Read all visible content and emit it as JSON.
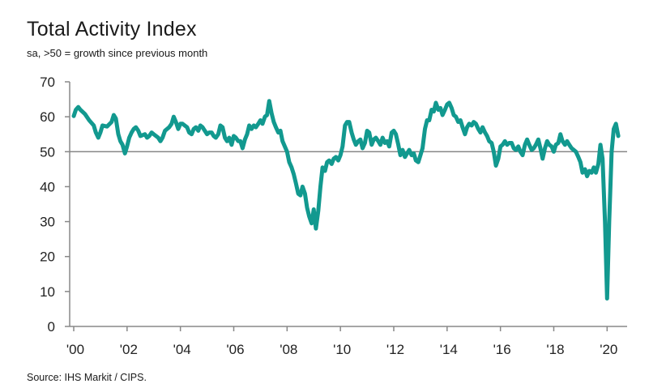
{
  "title": "Total Activity Index",
  "subtitle": "sa, >50 = growth since previous month",
  "source": "Source: IHS Markit / CIPS.",
  "colors": {
    "line": "#12998f",
    "axis": "#888888",
    "reference": "#888888",
    "text": "#222222"
  },
  "chart_data": {
    "type": "line",
    "title": "Total Activity Index",
    "subtitle": "sa, >50 = growth since previous month",
    "xlabel": "",
    "ylabel": "",
    "ylim": [
      0,
      70
    ],
    "xlim": [
      2000,
      2020.75
    ],
    "yticks": [
      0,
      10,
      20,
      30,
      40,
      50,
      60,
      70
    ],
    "xticks": [
      {
        "value": 2000,
        "label": "'00"
      },
      {
        "value": 2002,
        "label": "'02"
      },
      {
        "value": 2004,
        "label": "'04"
      },
      {
        "value": 2006,
        "label": "'06"
      },
      {
        "value": 2008,
        "label": "'08"
      },
      {
        "value": 2010,
        "label": "'10"
      },
      {
        "value": 2012,
        "label": "'12"
      },
      {
        "value": 2014,
        "label": "'14"
      },
      {
        "value": 2016,
        "label": "'16"
      },
      {
        "value": 2018,
        "label": "'18"
      },
      {
        "value": 2020,
        "label": "'20"
      }
    ],
    "reference_line": 50,
    "grid": false,
    "series": [
      {
        "name": "Total Activity Index",
        "points": [
          [
            2000.0,
            60.2
          ],
          [
            2000.08,
            62.0
          ],
          [
            2000.17,
            62.8
          ],
          [
            2000.25,
            62.0
          ],
          [
            2000.42,
            60.8
          ],
          [
            2000.58,
            59.0
          ],
          [
            2000.75,
            57.5
          ],
          [
            2000.83,
            55.5
          ],
          [
            2000.92,
            54.0
          ],
          [
            2001.0,
            55.5
          ],
          [
            2001.08,
            57.5
          ],
          [
            2001.25,
            57.2
          ],
          [
            2001.42,
            58.5
          ],
          [
            2001.5,
            60.5
          ],
          [
            2001.58,
            59.5
          ],
          [
            2001.67,
            55.0
          ],
          [
            2001.75,
            53.0
          ],
          [
            2001.83,
            52.0
          ],
          [
            2001.92,
            49.5
          ],
          [
            2002.0,
            51.5
          ],
          [
            2002.08,
            54.0
          ],
          [
            2002.17,
            55.5
          ],
          [
            2002.25,
            56.5
          ],
          [
            2002.33,
            57.0
          ],
          [
            2002.42,
            56.0
          ],
          [
            2002.5,
            54.5
          ],
          [
            2002.67,
            55.0
          ],
          [
            2002.75,
            54.0
          ],
          [
            2002.83,
            54.5
          ],
          [
            2002.92,
            55.5
          ],
          [
            2003.0,
            55.0
          ],
          [
            2003.17,
            54.0
          ],
          [
            2003.25,
            53.0
          ],
          [
            2003.33,
            54.0
          ],
          [
            2003.42,
            56.0
          ],
          [
            2003.58,
            57.0
          ],
          [
            2003.67,
            58.0
          ],
          [
            2003.75,
            60.0
          ],
          [
            2003.83,
            58.5
          ],
          [
            2003.92,
            56.5
          ],
          [
            2004.0,
            58.0
          ],
          [
            2004.08,
            58.0
          ],
          [
            2004.25,
            57.0
          ],
          [
            2004.33,
            55.5
          ],
          [
            2004.42,
            55.0
          ],
          [
            2004.5,
            56.5
          ],
          [
            2004.58,
            57.0
          ],
          [
            2004.67,
            56.0
          ],
          [
            2004.75,
            57.5
          ],
          [
            2004.83,
            57.0
          ],
          [
            2005.0,
            55.0
          ],
          [
            2005.08,
            55.5
          ],
          [
            2005.17,
            55.5
          ],
          [
            2005.25,
            54.5
          ],
          [
            2005.33,
            54.0
          ],
          [
            2005.42,
            55.0
          ],
          [
            2005.5,
            57.5
          ],
          [
            2005.58,
            57.0
          ],
          [
            2005.67,
            54.0
          ],
          [
            2005.75,
            53.0
          ],
          [
            2005.83,
            54.0
          ],
          [
            2005.92,
            52.0
          ],
          [
            2006.0,
            54.5
          ],
          [
            2006.08,
            54.0
          ],
          [
            2006.17,
            53.0
          ],
          [
            2006.25,
            53.0
          ],
          [
            2006.33,
            51.0
          ],
          [
            2006.42,
            53.5
          ],
          [
            2006.5,
            55.0
          ],
          [
            2006.58,
            57.5
          ],
          [
            2006.67,
            56.5
          ],
          [
            2006.75,
            57.5
          ],
          [
            2006.83,
            57.0
          ],
          [
            2006.92,
            58.0
          ],
          [
            2007.0,
            59.0
          ],
          [
            2007.08,
            58.0
          ],
          [
            2007.17,
            60.0
          ],
          [
            2007.25,
            60.5
          ],
          [
            2007.33,
            64.5
          ],
          [
            2007.42,
            61.0
          ],
          [
            2007.5,
            58.5
          ],
          [
            2007.58,
            57.0
          ],
          [
            2007.67,
            55.5
          ],
          [
            2007.75,
            56.0
          ],
          [
            2007.83,
            53.0
          ],
          [
            2008.0,
            50.0
          ],
          [
            2008.08,
            47.0
          ],
          [
            2008.17,
            45.5
          ],
          [
            2008.25,
            43.5
          ],
          [
            2008.33,
            41.0
          ],
          [
            2008.42,
            38.0
          ],
          [
            2008.5,
            37.5
          ],
          [
            2008.58,
            40.0
          ],
          [
            2008.67,
            38.0
          ],
          [
            2008.75,
            34.0
          ],
          [
            2008.83,
            31.5
          ],
          [
            2008.92,
            29.5
          ],
          [
            2009.0,
            33.5
          ],
          [
            2009.08,
            28.0
          ],
          [
            2009.17,
            33.0
          ],
          [
            2009.25,
            40.0
          ],
          [
            2009.33,
            45.5
          ],
          [
            2009.42,
            44.5
          ],
          [
            2009.5,
            47.0
          ],
          [
            2009.58,
            47.5
          ],
          [
            2009.67,
            46.5
          ],
          [
            2009.75,
            48.0
          ],
          [
            2009.83,
            48.5
          ],
          [
            2009.92,
            47.5
          ],
          [
            2010.0,
            49.0
          ],
          [
            2010.08,
            51.5
          ],
          [
            2010.17,
            57.5
          ],
          [
            2010.25,
            58.5
          ],
          [
            2010.33,
            58.5
          ],
          [
            2010.42,
            55.5
          ],
          [
            2010.5,
            53.5
          ],
          [
            2010.58,
            52.0
          ],
          [
            2010.67,
            53.0
          ],
          [
            2010.75,
            53.5
          ],
          [
            2010.83,
            51.0
          ],
          [
            2010.92,
            52.5
          ],
          [
            2011.0,
            56.0
          ],
          [
            2011.08,
            55.5
          ],
          [
            2011.17,
            52.0
          ],
          [
            2011.25,
            53.5
          ],
          [
            2011.33,
            54.0
          ],
          [
            2011.42,
            53.0
          ],
          [
            2011.5,
            52.0
          ],
          [
            2011.58,
            54.0
          ],
          [
            2011.67,
            52.5
          ],
          [
            2011.75,
            53.0
          ],
          [
            2011.83,
            51.5
          ],
          [
            2011.92,
            55.5
          ],
          [
            2012.0,
            56.0
          ],
          [
            2012.08,
            55.0
          ],
          [
            2012.17,
            52.0
          ],
          [
            2012.25,
            49.0
          ],
          [
            2012.33,
            50.5
          ],
          [
            2012.42,
            48.5
          ],
          [
            2012.5,
            49.5
          ],
          [
            2012.58,
            50.5
          ],
          [
            2012.67,
            49.0
          ],
          [
            2012.75,
            49.5
          ],
          [
            2012.83,
            47.5
          ],
          [
            2012.92,
            47.0
          ],
          [
            2013.0,
            49.0
          ],
          [
            2013.08,
            51.0
          ],
          [
            2013.17,
            56.5
          ],
          [
            2013.25,
            59.0
          ],
          [
            2013.33,
            59.0
          ],
          [
            2013.42,
            62.0
          ],
          [
            2013.5,
            61.5
          ],
          [
            2013.58,
            64.0
          ],
          [
            2013.67,
            62.0
          ],
          [
            2013.75,
            62.5
          ],
          [
            2013.83,
            60.5
          ],
          [
            2013.92,
            62.0
          ],
          [
            2014.0,
            63.5
          ],
          [
            2014.08,
            64.0
          ],
          [
            2014.17,
            62.5
          ],
          [
            2014.25,
            60.5
          ],
          [
            2014.33,
            60.0
          ],
          [
            2014.42,
            58.5
          ],
          [
            2014.5,
            59.0
          ],
          [
            2014.58,
            57.0
          ],
          [
            2014.67,
            55.0
          ],
          [
            2014.75,
            57.0
          ],
          [
            2014.83,
            58.0
          ],
          [
            2014.92,
            57.5
          ],
          [
            2015.0,
            58.5
          ],
          [
            2015.08,
            58.0
          ],
          [
            2015.17,
            56.5
          ],
          [
            2015.25,
            55.5
          ],
          [
            2015.33,
            57.0
          ],
          [
            2015.42,
            55.5
          ],
          [
            2015.5,
            54.5
          ],
          [
            2015.58,
            53.0
          ],
          [
            2015.67,
            52.5
          ],
          [
            2015.75,
            50.0
          ],
          [
            2015.83,
            46.0
          ],
          [
            2015.92,
            48.0
          ],
          [
            2016.0,
            51.5
          ],
          [
            2016.08,
            52.0
          ],
          [
            2016.17,
            53.0
          ],
          [
            2016.25,
            52.0
          ],
          [
            2016.33,
            52.5
          ],
          [
            2016.42,
            52.5
          ],
          [
            2016.5,
            51.0
          ],
          [
            2016.58,
            50.5
          ],
          [
            2016.67,
            51.5
          ],
          [
            2016.75,
            50.0
          ],
          [
            2016.83,
            49.0
          ],
          [
            2016.92,
            52.0
          ],
          [
            2017.0,
            53.5
          ],
          [
            2017.08,
            52.0
          ],
          [
            2017.17,
            50.5
          ],
          [
            2017.25,
            51.0
          ],
          [
            2017.33,
            52.0
          ],
          [
            2017.42,
            53.5
          ],
          [
            2017.5,
            51.0
          ],
          [
            2017.58,
            48.0
          ],
          [
            2017.67,
            51.0
          ],
          [
            2017.75,
            53.0
          ],
          [
            2017.83,
            52.0
          ],
          [
            2017.92,
            51.5
          ],
          [
            2018.0,
            50.0
          ],
          [
            2018.08,
            52.0
          ],
          [
            2018.17,
            52.5
          ],
          [
            2018.25,
            55.0
          ],
          [
            2018.33,
            53.0
          ],
          [
            2018.42,
            52.0
          ],
          [
            2018.5,
            53.0
          ],
          [
            2018.58,
            52.0
          ],
          [
            2018.67,
            51.0
          ],
          [
            2018.75,
            50.5
          ],
          [
            2018.83,
            50.0
          ],
          [
            2018.92,
            48.5
          ],
          [
            2019.0,
            47.0
          ],
          [
            2019.08,
            44.0
          ],
          [
            2019.17,
            45.0
          ],
          [
            2019.25,
            43.0
          ],
          [
            2019.33,
            44.5
          ],
          [
            2019.42,
            44.0
          ],
          [
            2019.5,
            45.5
          ],
          [
            2019.58,
            44.0
          ],
          [
            2019.67,
            46.5
          ],
          [
            2019.75,
            52.0
          ],
          [
            2019.83,
            48.0
          ],
          [
            2019.92,
            30.0
          ],
          [
            2020.0,
            8.0
          ],
          [
            2020.08,
            30.0
          ],
          [
            2020.17,
            50.0
          ],
          [
            2020.25,
            56.5
          ],
          [
            2020.33,
            58.0
          ],
          [
            2020.42,
            54.5
          ]
        ]
      }
    ]
  }
}
